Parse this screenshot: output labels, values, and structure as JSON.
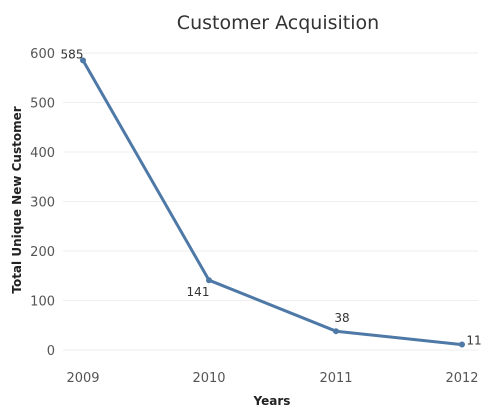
{
  "chart_data": {
    "type": "line",
    "title": "Customer Acquisition",
    "xlabel": "Years",
    "ylabel": "Total Unique New Customer",
    "categories": [
      "2009",
      "2010",
      "2011",
      "2012"
    ],
    "series": [
      {
        "values": [
          585,
          141,
          38,
          11
        ]
      }
    ],
    "data_labels": [
      "585",
      "141",
      "38",
      "11"
    ],
    "y_ticks": [
      0,
      100,
      200,
      300,
      400,
      500,
      600
    ],
    "ylim": [
      -10,
      610
    ],
    "grid": true,
    "legend": "none",
    "line_color": "#4e79a7"
  }
}
